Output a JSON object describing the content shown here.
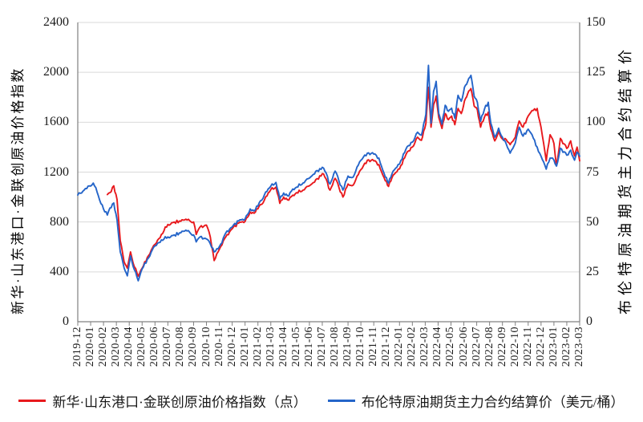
{
  "chart_data": {
    "type": "line",
    "title": "",
    "x_unit": "months since 2019-12 (0 = 2019-12, 39 = 2023-03)",
    "grid": "horizontal",
    "colors": {
      "grid": "#d9d9d9",
      "frame": "#808080",
      "tick_text": "#1a1a1a",
      "background": "#ffffff"
    },
    "axes": {
      "left": {
        "title": "新华·山东港口·金联创原油价格指数",
        "min": 0,
        "max": 2400,
        "ticks": [
          0,
          400,
          800,
          1200,
          1600,
          2000,
          2400
        ]
      },
      "right": {
        "title": "布伦特原油期货主力合约结算价",
        "min": 0,
        "max": 150,
        "ticks": [
          0,
          25,
          50,
          75,
          100,
          125,
          150
        ]
      },
      "x": {
        "tick_labels": [
          "2019-12",
          "2020-01",
          "2020-02",
          "2020-03",
          "2020-04",
          "2020-05",
          "2020-06",
          "2020-07",
          "2020-08",
          "2020-09",
          "2020-10",
          "2020-11",
          "2020-12",
          "2021-01",
          "2021-02",
          "2021-03",
          "2021-04",
          "2021-05",
          "2021-06",
          "2021-07",
          "2021-08",
          "2021-09",
          "2021-10",
          "2021-11",
          "2021-12",
          "2022-01",
          "2022-02",
          "2022-03",
          "2022-04",
          "2022-05",
          "2022-06",
          "2022-07",
          "2022-08",
          "2022-09",
          "2022-10",
          "2022-11",
          "2022-12",
          "2023-01",
          "2023-02",
          "2023-03"
        ]
      }
    },
    "legend": [
      {
        "label": "新华·山东港口·金联创原油价格指数（点）",
        "color": "#e8191d"
      },
      {
        "label": "布伦特原油期货主力合约结算价（美元/桶）",
        "color": "#2565c9"
      }
    ],
    "series": [
      {
        "name": "新华·山东港口·金联创原油价格指数（点）",
        "axis": "left",
        "color": "#e8191d",
        "points": [
          [
            2.3,
            1020
          ],
          [
            2.5,
            1035
          ],
          [
            2.8,
            1090
          ],
          [
            3.05,
            980
          ],
          [
            3.3,
            650
          ],
          [
            3.6,
            480
          ],
          [
            3.85,
            430
          ],
          [
            4.1,
            560
          ],
          [
            4.4,
            440
          ],
          [
            4.7,
            365
          ],
          [
            5,
            430
          ],
          [
            5.5,
            530
          ],
          [
            6,
            620
          ],
          [
            6.5,
            700
          ],
          [
            7,
            780
          ],
          [
            7.5,
            800
          ],
          [
            8,
            805
          ],
          [
            8.5,
            815
          ],
          [
            9,
            800
          ],
          [
            9.2,
            700
          ],
          [
            9.5,
            760
          ],
          [
            10,
            775
          ],
          [
            10.3,
            680
          ],
          [
            10.6,
            490
          ],
          [
            10.9,
            560
          ],
          [
            11.2,
            615
          ],
          [
            11.5,
            680
          ],
          [
            12,
            745
          ],
          [
            12.5,
            790
          ],
          [
            13,
            805
          ],
          [
            13.4,
            880
          ],
          [
            13.7,
            870
          ],
          [
            14,
            905
          ],
          [
            14.5,
            975
          ],
          [
            15,
            1060
          ],
          [
            15.4,
            1080
          ],
          [
            15.7,
            950
          ],
          [
            16,
            1000
          ],
          [
            16.4,
            975
          ],
          [
            16.7,
            1015
          ],
          [
            17,
            1035
          ],
          [
            17.5,
            1055
          ],
          [
            18,
            1090
          ],
          [
            18.5,
            1140
          ],
          [
            19.1,
            1185
          ],
          [
            19.6,
            1055
          ],
          [
            20,
            1150
          ],
          [
            20.3,
            1075
          ],
          [
            20.6,
            1000
          ],
          [
            21,
            1105
          ],
          [
            21.4,
            1095
          ],
          [
            21.8,
            1180
          ],
          [
            22.1,
            1230
          ],
          [
            22.5,
            1295
          ],
          [
            23,
            1290
          ],
          [
            23.4,
            1260
          ],
          [
            23.9,
            1130
          ],
          [
            24.15,
            1085
          ],
          [
            24.5,
            1175
          ],
          [
            25,
            1225
          ],
          [
            25.5,
            1340
          ],
          [
            26,
            1400
          ],
          [
            26.4,
            1480
          ],
          [
            26.7,
            1455
          ],
          [
            27.05,
            1590
          ],
          [
            27.25,
            1880
          ],
          [
            27.45,
            1560
          ],
          [
            27.65,
            1740
          ],
          [
            27.85,
            1810
          ],
          [
            28.05,
            1640
          ],
          [
            28.3,
            1550
          ],
          [
            28.55,
            1670
          ],
          [
            28.8,
            1620
          ],
          [
            29.05,
            1650
          ],
          [
            29.3,
            1580
          ],
          [
            29.55,
            1710
          ],
          [
            29.8,
            1670
          ],
          [
            30.05,
            1770
          ],
          [
            30.3,
            1830
          ],
          [
            30.55,
            1870
          ],
          [
            30.8,
            1730
          ],
          [
            31.05,
            1700
          ],
          [
            31.3,
            1560
          ],
          [
            31.6,
            1640
          ],
          [
            31.9,
            1680
          ],
          [
            32.1,
            1545
          ],
          [
            32.4,
            1450
          ],
          [
            32.7,
            1530
          ],
          [
            33,
            1465
          ],
          [
            33.3,
            1460
          ],
          [
            33.6,
            1420
          ],
          [
            34,
            1480
          ],
          [
            34.3,
            1610
          ],
          [
            34.6,
            1560
          ],
          [
            35,
            1650
          ],
          [
            35.4,
            1695
          ],
          [
            35.7,
            1710
          ],
          [
            36,
            1560
          ],
          [
            36.4,
            1290
          ],
          [
            36.7,
            1500
          ],
          [
            37,
            1430
          ],
          [
            37.2,
            1250
          ],
          [
            37.5,
            1470
          ],
          [
            38,
            1390
          ],
          [
            38.3,
            1450
          ],
          [
            38.6,
            1330
          ],
          [
            38.8,
            1400
          ],
          [
            39,
            1290
          ]
        ]
      },
      {
        "name": "布伦特原油期货主力合约结算价（美元/桶）",
        "axis": "right",
        "color": "#2565c9",
        "points": [
          [
            0,
            63.5
          ],
          [
            0.5,
            66
          ],
          [
            1.2,
            69.5
          ],
          [
            1.5,
            65
          ],
          [
            2,
            56.5
          ],
          [
            2.3,
            53.5
          ],
          [
            2.5,
            57
          ],
          [
            2.8,
            59.5
          ],
          [
            3.05,
            51
          ],
          [
            3.3,
            35
          ],
          [
            3.6,
            27
          ],
          [
            3.85,
            23
          ],
          [
            4.1,
            33
          ],
          [
            4.4,
            26
          ],
          [
            4.7,
            20.5
          ],
          [
            5,
            26.5
          ],
          [
            5.5,
            32
          ],
          [
            6,
            38
          ],
          [
            6.5,
            41
          ],
          [
            7,
            42.5
          ],
          [
            7.5,
            43.5
          ],
          [
            8,
            44.5
          ],
          [
            8.5,
            45.5
          ],
          [
            9,
            43.5
          ],
          [
            9.2,
            40
          ],
          [
            9.5,
            42.5
          ],
          [
            10,
            41.5
          ],
          [
            10.3,
            39
          ],
          [
            10.6,
            35
          ],
          [
            10.9,
            36.5
          ],
          [
            11.2,
            39.5
          ],
          [
            11.5,
            44.5
          ],
          [
            12,
            47.5
          ],
          [
            12.5,
            50.5
          ],
          [
            13,
            51.5
          ],
          [
            13.4,
            56.5
          ],
          [
            13.7,
            55.5
          ],
          [
            14,
            58
          ],
          [
            14.5,
            63.5
          ],
          [
            15,
            68
          ],
          [
            15.4,
            69.8
          ],
          [
            15.7,
            61.5
          ],
          [
            16,
            64.5
          ],
          [
            16.4,
            63
          ],
          [
            16.7,
            66.5
          ],
          [
            17,
            67.5
          ],
          [
            17.5,
            69.5
          ],
          [
            18,
            72
          ],
          [
            18.5,
            75.5
          ],
          [
            19.1,
            77
          ],
          [
            19.6,
            69
          ],
          [
            20,
            75.5
          ],
          [
            20.3,
            70.5
          ],
          [
            20.6,
            66
          ],
          [
            21,
            73
          ],
          [
            21.4,
            72.5
          ],
          [
            21.8,
            78.5
          ],
          [
            22.1,
            81.5
          ],
          [
            22.5,
            84.5
          ],
          [
            23,
            84
          ],
          [
            23.4,
            82
          ],
          [
            23.9,
            72.5
          ],
          [
            24.15,
            69.5
          ],
          [
            24.5,
            75.5
          ],
          [
            25,
            79
          ],
          [
            25.5,
            86.5
          ],
          [
            26,
            90
          ],
          [
            26.4,
            95
          ],
          [
            26.7,
            93.5
          ],
          [
            27.05,
            104
          ],
          [
            27.25,
            128.5
          ],
          [
            27.45,
            99.5
          ],
          [
            27.65,
            115.5
          ],
          [
            27.85,
            120.5
          ],
          [
            28.05,
            104.5
          ],
          [
            28.3,
            99
          ],
          [
            28.55,
            108.5
          ],
          [
            28.8,
            105.5
          ],
          [
            29.05,
            107
          ],
          [
            29.3,
            102
          ],
          [
            29.55,
            113.5
          ],
          [
            29.8,
            110.5
          ],
          [
            30.05,
            117.5
          ],
          [
            30.3,
            120.5
          ],
          [
            30.55,
            123.5
          ],
          [
            30.8,
            113
          ],
          [
            31.05,
            110
          ],
          [
            31.3,
            100.5
          ],
          [
            31.6,
            106.5
          ],
          [
            31.9,
            110
          ],
          [
            32.1,
            99.5
          ],
          [
            32.4,
            92.5
          ],
          [
            32.7,
            97
          ],
          [
            33,
            92.5
          ],
          [
            33.3,
            89
          ],
          [
            33.6,
            84.5
          ],
          [
            34,
            89.5
          ],
          [
            34.3,
            97.5
          ],
          [
            34.6,
            93
          ],
          [
            35,
            96.5
          ],
          [
            35.4,
            92
          ],
          [
            35.7,
            87.5
          ],
          [
            36,
            83
          ],
          [
            36.4,
            76.5
          ],
          [
            36.7,
            82
          ],
          [
            37,
            81
          ],
          [
            37.2,
            78
          ],
          [
            37.5,
            87
          ],
          [
            38,
            83.5
          ],
          [
            38.3,
            86
          ],
          [
            38.6,
            81
          ],
          [
            38.8,
            85
          ],
          [
            39,
            83
          ]
        ]
      }
    ]
  }
}
